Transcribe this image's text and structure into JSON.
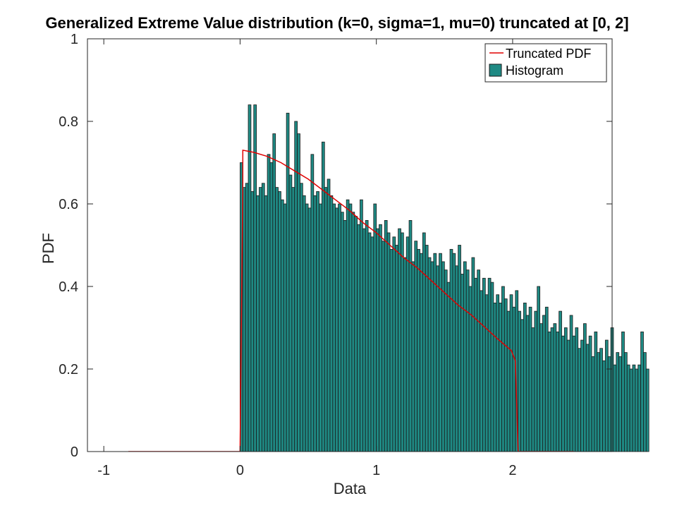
{
  "chart_data": {
    "type": "bar",
    "title": "Generalized Extreme Value distribution (k=0, sigma=1, mu=0) truncated at [0, 2]",
    "xlabel": "Data",
    "ylabel": "PDF",
    "xlim": [
      -1.12,
      2.73
    ],
    "ylim": [
      0,
      1
    ],
    "xticks": [
      "-1",
      "0",
      "1",
      "2"
    ],
    "yticks": [
      "0",
      "0.2",
      "0.4",
      "0.6",
      "0.8",
      "1"
    ],
    "grid": false,
    "legend_position": "top-right",
    "colors": {
      "histogram_fill": "#1f8a84",
      "histogram_edge": "#1a1a1a",
      "pdf_line": "#e00000"
    },
    "histogram": {
      "name": "Histogram",
      "bin_start": 0,
      "bin_width": 0.02,
      "values": [
        0.7,
        0.64,
        0.65,
        0.84,
        0.63,
        0.84,
        0.62,
        0.64,
        0.65,
        0.62,
        0.72,
        0.7,
        0.77,
        0.64,
        0.63,
        0.61,
        0.6,
        0.82,
        0.67,
        0.64,
        0.8,
        0.77,
        0.65,
        0.62,
        0.6,
        0.59,
        0.72,
        0.62,
        0.63,
        0.6,
        0.75,
        0.64,
        0.66,
        0.62,
        0.6,
        0.59,
        0.6,
        0.58,
        0.56,
        0.61,
        0.6,
        0.58,
        0.57,
        0.55,
        0.61,
        0.54,
        0.56,
        0.53,
        0.52,
        0.6,
        0.54,
        0.55,
        0.51,
        0.56,
        0.53,
        0.49,
        0.52,
        0.5,
        0.54,
        0.53,
        0.47,
        0.52,
        0.56,
        0.46,
        0.51,
        0.49,
        0.48,
        0.53,
        0.5,
        0.47,
        0.46,
        0.48,
        0.45,
        0.48,
        0.46,
        0.44,
        0.41,
        0.49,
        0.48,
        0.45,
        0.5,
        0.43,
        0.46,
        0.44,
        0.4,
        0.47,
        0.42,
        0.44,
        0.39,
        0.42,
        0.38,
        0.42,
        0.41,
        0.36,
        0.38,
        0.36,
        0.4,
        0.37,
        0.34,
        0.38,
        0.35,
        0.39,
        0.34,
        0.32,
        0.36,
        0.33,
        0.35,
        0.3,
        0.34,
        0.4,
        0.31,
        0.33,
        0.35,
        0.29,
        0.3,
        0.31,
        0.29,
        0.34,
        0.28,
        0.3,
        0.27,
        0.33,
        0.28,
        0.3,
        0.25,
        0.27,
        0.31,
        0.26,
        0.28,
        0.23,
        0.29,
        0.24,
        0.25,
        0.22,
        0.27,
        0.23,
        0.3,
        0.21,
        0.24,
        0.23,
        0.29,
        0.24,
        0.21,
        0.2,
        0.21,
        0.2,
        0.21,
        0.29,
        0.24,
        0.2
      ]
    },
    "pdf": {
      "name": "Truncated PDF",
      "x": [
        -0.82,
        -0.01,
        0.0,
        0.02,
        0.02,
        0.1,
        0.2,
        0.3,
        0.4,
        0.5,
        0.6,
        0.7,
        0.8,
        0.9,
        1.0,
        1.1,
        1.2,
        1.3,
        1.4,
        1.5,
        1.6,
        1.7,
        1.8,
        1.9,
        1.99,
        2.02,
        2.04,
        2.45
      ],
      "y": [
        0,
        0,
        0,
        0.65,
        0.73,
        0.725,
        0.715,
        0.7,
        0.68,
        0.66,
        0.635,
        0.61,
        0.585,
        0.555,
        0.53,
        0.5,
        0.47,
        0.445,
        0.415,
        0.385,
        0.355,
        0.33,
        0.3,
        0.27,
        0.245,
        0.22,
        0,
        0
      ]
    }
  }
}
